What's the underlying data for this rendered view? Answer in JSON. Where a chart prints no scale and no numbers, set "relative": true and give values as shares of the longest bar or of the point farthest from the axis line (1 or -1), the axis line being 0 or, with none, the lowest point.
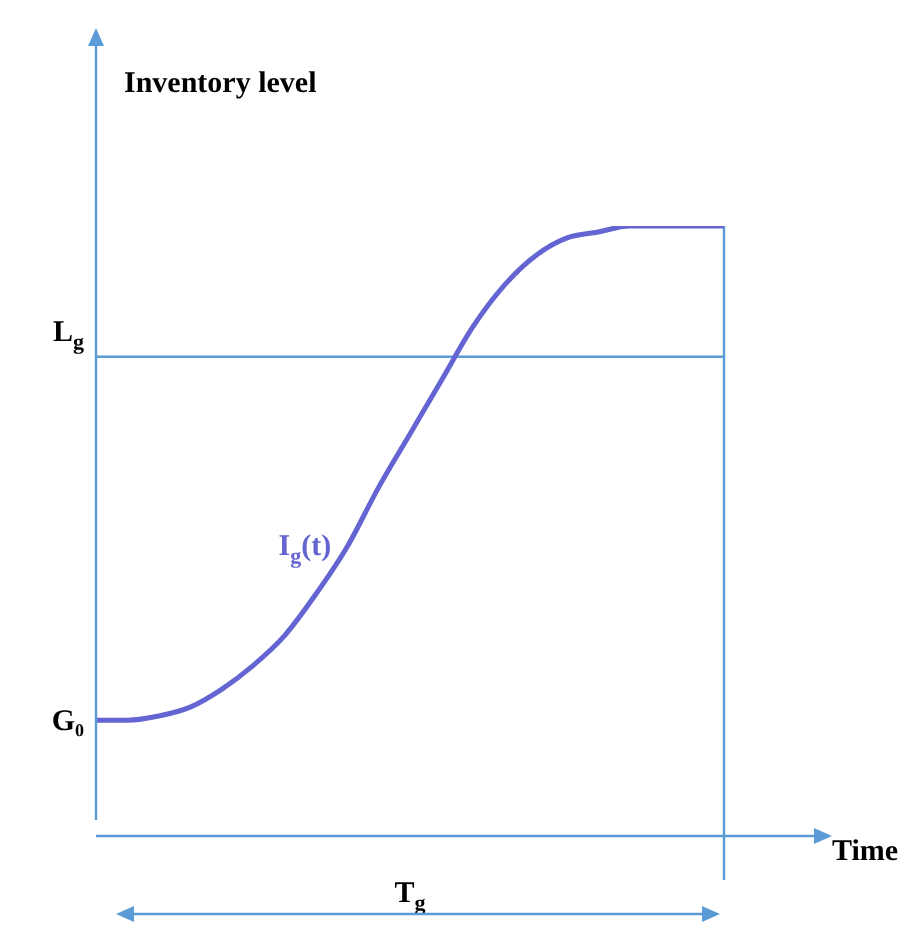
{
  "chart_data": {
    "type": "line",
    "relative": true,
    "ylabel": "Inventory level",
    "xlabel": "Time",
    "categories": [
      null,
      null,
      null,
      null,
      null,
      null,
      null,
      null,
      null,
      null,
      null,
      null,
      null,
      null,
      null,
      null,
      null,
      null,
      null,
      null,
      null
    ],
    "series": [
      {
        "name": "I$_{g}$(t)",
        "color": "#6464d2",
        "values": [
          0.168,
          0.168,
          0.175,
          0.19,
          0.22,
          0.26,
          0.31,
          0.38,
          0.46,
          0.56,
          0.65,
          0.74,
          0.83,
          0.9,
          0.95,
          0.98,
          0.99,
          1,
          1,
          1,
          1
        ]
      }
    ],
    "ref_lines": [
      {
        "axis": "y",
        "value": 0.78,
        "label": "L$_{g}$",
        "color": "#5b9bd5"
      }
    ],
    "annotations": [
      "G₀",
      "T$_{g}$"
    ],
    "grid": false,
    "legend": false,
    "marker": "none",
    "line_style": "solid"
  }
}
